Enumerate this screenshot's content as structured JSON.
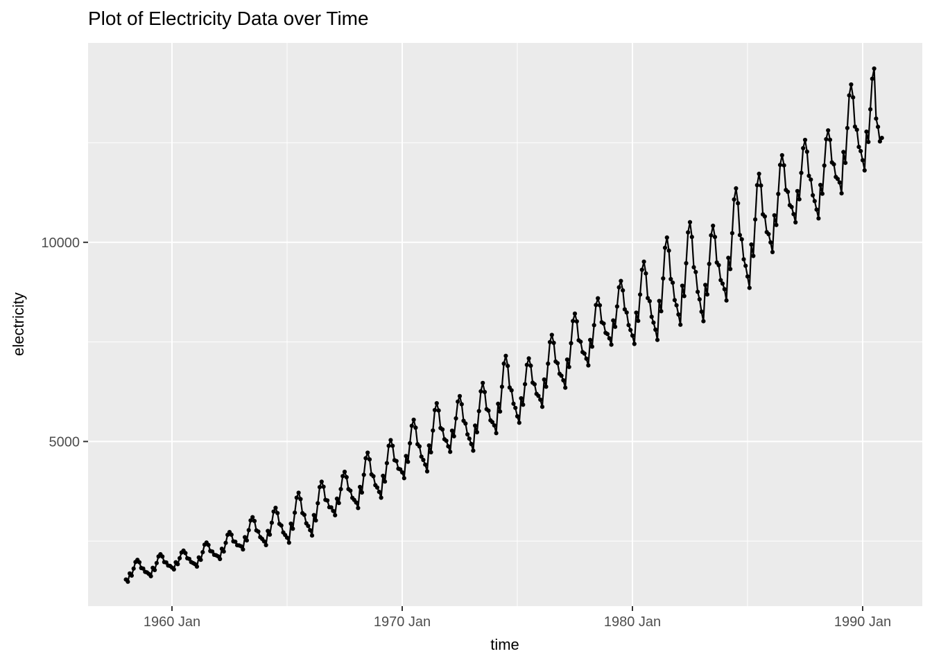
{
  "title": "Plot of Electricity Data over Time",
  "x_axis": {
    "label": "time",
    "tick_labels": [
      "1960 Jan",
      "1970 Jan",
      "1980 Jan",
      "1990 Jan"
    ]
  },
  "y_axis": {
    "label": "electricity",
    "tick_labels": [
      "5000",
      "10000"
    ]
  },
  "style": {
    "panel_bg": "#ebebeb",
    "grid_color": "#ffffff",
    "line_color": "#000000",
    "point_color": "#000000",
    "tick_mark_color": "#333333",
    "tick_text_color": "#4d4d4d",
    "title_color": "#000000"
  },
  "chart_data": {
    "type": "line",
    "title": "Plot of Electricity Data over Time",
    "xlabel": "time",
    "ylabel": "electricity",
    "legend": "none",
    "grid": "on",
    "marker": "point",
    "frequency": "monthly",
    "x_start_year": 1958,
    "x_start_month": 1,
    "x_end_year": 1990,
    "x_end_month": 11,
    "xlim": [
      1956.355,
      1992.59
    ],
    "ylim": [
      868,
      15004
    ],
    "x_tick_values": [
      1960,
      1970,
      1980,
      1990
    ],
    "x_tick_labels": [
      "1960 Jan",
      "1970 Jan",
      "1980 Jan",
      "1990 Jan"
    ],
    "x_minor_tick_values": [
      1965,
      1975,
      1985
    ],
    "y_tick_values": [
      5000,
      10000
    ],
    "y_tick_labels": [
      "5000",
      "10000"
    ],
    "y_minor_tick_values": [
      2500,
      7500,
      12500
    ],
    "series": [
      {
        "name": "electricity",
        "values": [
          1535,
          1480,
          1689,
          1634,
          1810,
          1975,
          2030,
          1969,
          1825,
          1811,
          1729,
          1713,
          1675,
          1620,
          1829,
          1774,
          1950,
          2115,
          2170,
          2113,
          1974,
          1963,
          1887,
          1877,
          1837,
          1790,
          1969,
          1922,
          2072,
          2213,
          2260,
          2200,
          2070,
          2053,
          1973,
          1949,
          1921,
          1860,
          2090,
          2029,
          2223,
          2410,
          2465,
          2403,
          2250,
          2239,
          2156,
          2145,
          2118,
          2050,
          2307,
          2239,
          2456,
          2658,
          2726,
          2661,
          2494,
          2484,
          2397,
          2391,
          2371,
          2290,
          2598,
          2517,
          2776,
          3019,
          3100,
          3005,
          2769,
          2739,
          2599,
          2556,
          2494,
          2400,
          2755,
          2662,
          2961,
          3242,
          3335,
          3204,
          2932,
          2892,
          2717,
          2654,
          2586,
          2460,
          2937,
          2811,
          3213,
          3590,
          3715,
          3554,
          3204,
          3160,
          2945,
          2880,
          2775,
          2640,
          3153,
          3018,
          3450,
          3855,
          3990,
          3864,
          3536,
          3519,
          3351,
          3345,
          3259,
          3150,
          3564,
          3455,
          3804,
          4131,
          4240,
          4104,
          3804,
          3767,
          3585,
          3534,
          3469,
          3330,
          3858,
          3719,
          4164,
          4581,
          4720,
          4551,
          4173,
          4129,
          3903,
          3844,
          3735,
          3590,
          4139,
          3995,
          4457,
          4891,
          5035,
          4892,
          4532,
          4509,
          4318,
          4300,
          4226,
          4080,
          4635,
          4489,
          4956,
          5394,
          5545,
          5347,
          4934,
          4878,
          4620,
          4537,
          4421,
          4250,
          4900,
          4729,
          5276,
          5789,
          5960,
          5778,
          5338,
          5301,
          5057,
          5018,
          4880,
          4740,
          5272,
          5132,
          5580,
          6000,
          6140,
          5935,
          5519,
          5452,
          5178,
          5072,
          4936,
          4770,
          5399,
          5233,
          5763,
          6260,
          6470,
          6243,
          5812,
          5774,
          5531,
          5486,
          5404,
          5210,
          5947,
          5753,
          6374,
          6956,
          7150,
          6898,
          6355,
          6284,
          5948,
          5845,
          5632,
          5470,
          6084,
          5922,
          6439,
          6924,
          7085,
          6903,
          6478,
          6438,
          6195,
          6145,
          6051,
          5870,
          6556,
          6375,
          6953,
          7495,
          7675,
          7476,
          7007,
          6965,
          6700,
          6651,
          6536,
          6350,
          7057,
          6871,
          7466,
          8024,
          8210,
          8015,
          7541,
          7504,
          7244,
          7207,
          7079,
          6910,
          7550,
          7382,
          7921,
          8427,
          8595,
          8420,
          7993,
          7961,
          7728,
          7697,
          7590,
          7430,
          8038,
          7878,
          8390,
          8870,
          9030,
          8793,
          8316,
          8238,
          7922,
          7798,
          7657,
          7450,
          8235,
          8028,
          8689,
          9309,
          9515,
          9220,
          8601,
          8523,
          8130,
          7984,
          7807,
          7550,
          8527,
          8270,
          9092,
          9863,
          10120,
          9792,
          9077,
          8987,
          8549,
          8419,
          8188,
          7930,
          8909,
          8651,
          9475,
          10248,
          10505,
          10133,
          9374,
          9254,
          8757,
          8569,
          8260,
          8020,
          8930,
          8691,
          9457,
          10176,
          10415,
          10134,
          9493,
          9426,
          9051,
          8963,
          8822,
          8540,
          9610,
          9328,
          10229,
          11074,
          11355,
          10980,
          10183,
          10074,
          9574,
          9411,
          9142,
          8855,
          9944,
          9657,
          10574,
          11434,
          11720,
          11425,
          10701,
          10648,
          10255,
          10205,
          9998,
          9755,
          10678,
          10435,
          11213,
          11942,
          12185,
          11932,
          11315,
          11268,
          10931,
          10886,
          10707,
          10500,
          11287,
          11080,
          11742,
          12363,
          12570,
          12275,
          11669,
          11575,
          11181,
          11035,
          10821,
          10600,
          11440,
          11219,
          11926,
          12589,
          12810,
          12573,
          12005,
          11957,
          11641,
          11590,
          11503,
          11230,
          12267,
          11994,
          12868,
          13687,
          13960,
          13637,
          12904,
          12825,
          12394,
          12290,
          12061,
          11805,
          12776,
          12520,
          13338,
          14105,
          14360,
          13106,
          12898,
          12533,
          12620
        ]
      }
    ]
  }
}
